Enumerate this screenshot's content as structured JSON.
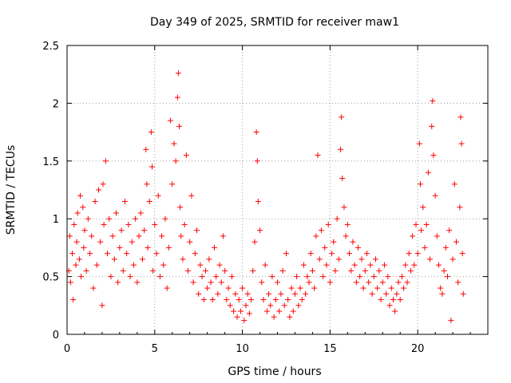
{
  "chart_data": {
    "type": "scatter",
    "title": "Day 349 of 2025, SRMTID for receiver maw1",
    "xlabel": "GPS time / hours",
    "ylabel": "SRMTID / TECUs",
    "xlim": [
      0,
      24
    ],
    "ylim": [
      0,
      2.5
    ],
    "xticks": [
      0,
      5,
      10,
      15,
      20
    ],
    "xtick_labels": [
      "0",
      "5",
      "10",
      "15",
      "20"
    ],
    "yticks": [
      0,
      0.5,
      1,
      1.5,
      2,
      2.5
    ],
    "ytick_labels": [
      "0",
      "0.5",
      "1",
      "1.5",
      "2",
      "2.5"
    ],
    "grid": true,
    "marker": "plus",
    "point_color": "#ff0000",
    "series": [
      {
        "name": "SRMTID",
        "points": [
          [
            0.1,
            0.55
          ],
          [
            0.15,
            0.85
          ],
          [
            0.2,
            0.45
          ],
          [
            0.3,
            0.7
          ],
          [
            0.35,
            0.3
          ],
          [
            0.4,
            0.95
          ],
          [
            0.5,
            0.6
          ],
          [
            0.55,
            0.8
          ],
          [
            0.6,
            1.05
          ],
          [
            0.7,
            0.65
          ],
          [
            0.75,
            1.2
          ],
          [
            0.8,
            0.5
          ],
          [
            0.9,
            1.1
          ],
          [
            0.95,
            0.75
          ],
          [
            1.0,
            0.9
          ],
          [
            1.1,
            0.55
          ],
          [
            1.2,
            1.0
          ],
          [
            1.3,
            0.7
          ],
          [
            1.4,
            0.85
          ],
          [
            1.5,
            0.4
          ],
          [
            1.6,
            1.15
          ],
          [
            1.7,
            0.6
          ],
          [
            1.8,
            1.25
          ],
          [
            1.9,
            0.8
          ],
          [
            2.0,
            0.25
          ],
          [
            2.05,
            1.3
          ],
          [
            2.1,
            0.95
          ],
          [
            2.2,
            1.5
          ],
          [
            2.3,
            0.7
          ],
          [
            2.4,
            1.0
          ],
          [
            2.5,
            0.5
          ],
          [
            2.6,
            0.85
          ],
          [
            2.7,
            0.65
          ],
          [
            2.8,
            1.05
          ],
          [
            2.9,
            0.45
          ],
          [
            3.0,
            0.75
          ],
          [
            3.1,
            0.9
          ],
          [
            3.2,
            0.55
          ],
          [
            3.3,
            1.15
          ],
          [
            3.4,
            0.7
          ],
          [
            3.5,
            0.95
          ],
          [
            3.6,
            0.5
          ],
          [
            3.7,
            0.8
          ],
          [
            3.8,
            0.6
          ],
          [
            3.9,
            1.0
          ],
          [
            4.0,
            0.45
          ],
          [
            4.1,
            0.85
          ],
          [
            4.2,
            1.05
          ],
          [
            4.3,
            0.65
          ],
          [
            4.4,
            0.9
          ],
          [
            4.5,
            1.6
          ],
          [
            4.55,
            1.3
          ],
          [
            4.6,
            0.75
          ],
          [
            4.7,
            1.15
          ],
          [
            4.8,
            1.75
          ],
          [
            4.85,
            1.45
          ],
          [
            4.9,
            0.55
          ],
          [
            5.0,
            0.95
          ],
          [
            5.1,
            0.7
          ],
          [
            5.2,
            1.2
          ],
          [
            5.3,
            0.5
          ],
          [
            5.4,
            0.85
          ],
          [
            5.5,
            0.6
          ],
          [
            5.6,
            1.0
          ],
          [
            5.7,
            0.4
          ],
          [
            5.8,
            0.75
          ],
          [
            5.9,
            1.85
          ],
          [
            6.0,
            1.3
          ],
          [
            6.1,
            1.65
          ],
          [
            6.2,
            1.5
          ],
          [
            6.3,
            2.05
          ],
          [
            6.35,
            2.26
          ],
          [
            6.4,
            1.8
          ],
          [
            6.45,
            1.1
          ],
          [
            6.5,
            0.85
          ],
          [
            6.6,
            0.65
          ],
          [
            6.7,
            0.95
          ],
          [
            6.8,
            1.55
          ],
          [
            6.9,
            0.55
          ],
          [
            7.0,
            0.8
          ],
          [
            7.1,
            1.2
          ],
          [
            7.2,
            0.45
          ],
          [
            7.3,
            0.7
          ],
          [
            7.4,
            0.9
          ],
          [
            7.5,
            0.35
          ],
          [
            7.6,
            0.6
          ],
          [
            7.7,
            0.5
          ],
          [
            7.8,
            0.3
          ],
          [
            7.9,
            0.55
          ],
          [
            8.0,
            0.4
          ],
          [
            8.1,
            0.65
          ],
          [
            8.2,
            0.45
          ],
          [
            8.3,
            0.3
          ],
          [
            8.4,
            0.75
          ],
          [
            8.5,
            0.5
          ],
          [
            8.6,
            0.35
          ],
          [
            8.7,
            0.6
          ],
          [
            8.8,
            0.45
          ],
          [
            8.9,
            0.85
          ],
          [
            9.0,
            0.55
          ],
          [
            9.1,
            0.3
          ],
          [
            9.2,
            0.4
          ],
          [
            9.3,
            0.25
          ],
          [
            9.4,
            0.5
          ],
          [
            9.5,
            0.2
          ],
          [
            9.6,
            0.35
          ],
          [
            9.7,
            0.15
          ],
          [
            9.8,
            0.3
          ],
          [
            9.9,
            0.2
          ],
          [
            10.0,
            0.4
          ],
          [
            10.1,
            0.12
          ],
          [
            10.2,
            0.25
          ],
          [
            10.3,
            0.35
          ],
          [
            10.4,
            0.18
          ],
          [
            10.5,
            0.3
          ],
          [
            10.6,
            0.55
          ],
          [
            10.7,
            0.8
          ],
          [
            10.8,
            1.75
          ],
          [
            10.85,
            1.5
          ],
          [
            10.9,
            1.15
          ],
          [
            11.0,
            0.9
          ],
          [
            11.1,
            0.45
          ],
          [
            11.2,
            0.3
          ],
          [
            11.3,
            0.6
          ],
          [
            11.4,
            0.2
          ],
          [
            11.5,
            0.35
          ],
          [
            11.6,
            0.25
          ],
          [
            11.7,
            0.5
          ],
          [
            11.8,
            0.15
          ],
          [
            11.9,
            0.3
          ],
          [
            12.0,
            0.45
          ],
          [
            12.1,
            0.2
          ],
          [
            12.2,
            0.35
          ],
          [
            12.3,
            0.55
          ],
          [
            12.4,
            0.25
          ],
          [
            12.5,
            0.7
          ],
          [
            12.6,
            0.3
          ],
          [
            12.7,
            0.15
          ],
          [
            12.8,
            0.4
          ],
          [
            12.9,
            0.2
          ],
          [
            13.0,
            0.35
          ],
          [
            13.1,
            0.5
          ],
          [
            13.2,
            0.25
          ],
          [
            13.3,
            0.4
          ],
          [
            13.4,
            0.3
          ],
          [
            13.5,
            0.6
          ],
          [
            13.6,
            0.35
          ],
          [
            13.7,
            0.5
          ],
          [
            13.8,
            0.45
          ],
          [
            13.9,
            0.7
          ],
          [
            14.0,
            0.55
          ],
          [
            14.1,
            0.4
          ],
          [
            14.2,
            0.85
          ],
          [
            14.3,
            1.55
          ],
          [
            14.4,
            0.65
          ],
          [
            14.5,
            0.9
          ],
          [
            14.6,
            0.5
          ],
          [
            14.7,
            0.75
          ],
          [
            14.8,
            0.6
          ],
          [
            14.9,
            0.95
          ],
          [
            15.0,
            0.45
          ],
          [
            15.1,
            0.7
          ],
          [
            15.2,
            0.8
          ],
          [
            15.3,
            0.55
          ],
          [
            15.4,
            1.0
          ],
          [
            15.5,
            0.65
          ],
          [
            15.6,
            1.6
          ],
          [
            15.65,
            1.88
          ],
          [
            15.7,
            1.35
          ],
          [
            15.8,
            1.1
          ],
          [
            15.9,
            0.85
          ],
          [
            16.0,
            0.95
          ],
          [
            16.1,
            0.7
          ],
          [
            16.2,
            0.55
          ],
          [
            16.3,
            0.8
          ],
          [
            16.4,
            0.6
          ],
          [
            16.5,
            0.45
          ],
          [
            16.6,
            0.75
          ],
          [
            16.7,
            0.5
          ],
          [
            16.8,
            0.65
          ],
          [
            16.9,
            0.4
          ],
          [
            17.0,
            0.55
          ],
          [
            17.1,
            0.7
          ],
          [
            17.2,
            0.45
          ],
          [
            17.3,
            0.6
          ],
          [
            17.4,
            0.35
          ],
          [
            17.5,
            0.5
          ],
          [
            17.6,
            0.65
          ],
          [
            17.7,
            0.4
          ],
          [
            17.8,
            0.55
          ],
          [
            17.9,
            0.3
          ],
          [
            18.0,
            0.45
          ],
          [
            18.1,
            0.6
          ],
          [
            18.2,
            0.35
          ],
          [
            18.3,
            0.5
          ],
          [
            18.4,
            0.25
          ],
          [
            18.5,
            0.4
          ],
          [
            18.6,
            0.3
          ],
          [
            18.7,
            0.2
          ],
          [
            18.8,
            0.35
          ],
          [
            18.9,
            0.45
          ],
          [
            19.0,
            0.3
          ],
          [
            19.1,
            0.5
          ],
          [
            19.2,
            0.4
          ],
          [
            19.3,
            0.6
          ],
          [
            19.4,
            0.45
          ],
          [
            19.5,
            0.7
          ],
          [
            19.6,
            0.55
          ],
          [
            19.7,
            0.85
          ],
          [
            19.8,
            0.6
          ],
          [
            19.9,
            0.95
          ],
          [
            20.0,
            0.7
          ],
          [
            20.1,
            1.65
          ],
          [
            20.15,
            1.3
          ],
          [
            20.2,
            0.9
          ],
          [
            20.3,
            1.1
          ],
          [
            20.4,
            0.75
          ],
          [
            20.5,
            0.95
          ],
          [
            20.6,
            1.4
          ],
          [
            20.7,
            0.65
          ],
          [
            20.8,
            1.8
          ],
          [
            20.85,
            2.02
          ],
          [
            20.9,
            1.55
          ],
          [
            21.0,
            1.2
          ],
          [
            21.1,
            0.85
          ],
          [
            21.2,
            0.6
          ],
          [
            21.3,
            0.4
          ],
          [
            21.4,
            0.35
          ],
          [
            21.5,
            0.55
          ],
          [
            21.6,
            0.75
          ],
          [
            21.7,
            0.5
          ],
          [
            21.8,
            0.9
          ],
          [
            21.9,
            0.12
          ],
          [
            22.0,
            0.65
          ],
          [
            22.1,
            1.3
          ],
          [
            22.2,
            0.8
          ],
          [
            22.3,
            0.45
          ],
          [
            22.4,
            1.1
          ],
          [
            22.45,
            1.88
          ],
          [
            22.5,
            1.65
          ],
          [
            22.55,
            0.7
          ],
          [
            22.6,
            0.35
          ]
        ]
      }
    ]
  }
}
